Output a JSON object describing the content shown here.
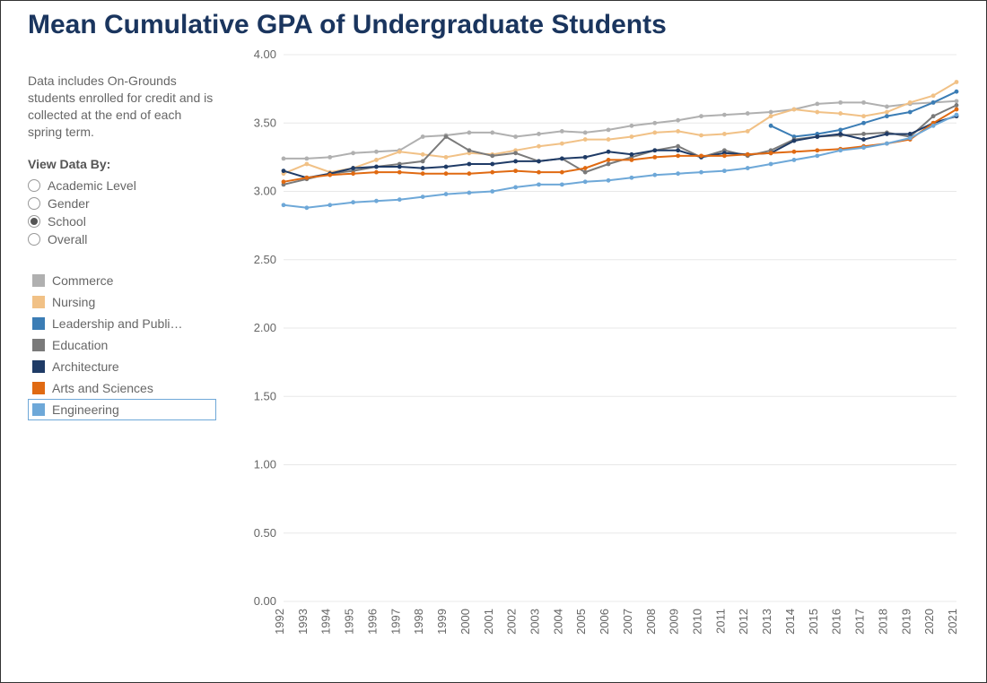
{
  "title": "Mean Cumulative GPA of Undergraduate Students",
  "caption": "Data includes On-Grounds students enrolled for credit and is collected at the end of each spring term.",
  "viewDataByLabel": "View Data By:",
  "radios": [
    {
      "label": "Academic Level",
      "selected": false
    },
    {
      "label": "Gender",
      "selected": false
    },
    {
      "label": "School",
      "selected": true
    },
    {
      "label": "Overall",
      "selected": false
    }
  ],
  "chart": {
    "type": "line",
    "background_color": "#ffffff",
    "grid_color": "#e8e8e8",
    "axis_text_color": "#666666",
    "axis_fontsize": 13,
    "title_color": "#1a355e",
    "title_fontsize": 30,
    "line_width": 2,
    "marker_radius": 2.4,
    "ylim": [
      0,
      4
    ],
    "ytick_step": 0.5,
    "yticks": [
      "0.00",
      "0.50",
      "1.00",
      "1.50",
      "2.00",
      "2.50",
      "3.00",
      "3.50",
      "4.00"
    ],
    "x_categories": [
      "1992",
      "1993",
      "1994",
      "1995",
      "1996",
      "1997",
      "1998",
      "1999",
      "2000",
      "2001",
      "2002",
      "2003",
      "2004",
      "2005",
      "2006",
      "2007",
      "2008",
      "2009",
      "2010",
      "2011",
      "2012",
      "2013",
      "2014",
      "2015",
      "2016",
      "2017",
      "2018",
      "2019",
      "2020",
      "2021"
    ],
    "legend_selected_index": 6,
    "series": [
      {
        "name": "Commerce",
        "color": "#b0b0b0",
        "values": [
          3.24,
          3.24,
          3.25,
          3.28,
          3.29,
          3.3,
          3.4,
          3.41,
          3.43,
          3.43,
          3.4,
          3.42,
          3.44,
          3.43,
          3.45,
          3.48,
          3.5,
          3.52,
          3.55,
          3.56,
          3.57,
          3.58,
          3.6,
          3.64,
          3.65,
          3.65,
          3.62,
          3.64,
          3.65,
          3.66
        ]
      },
      {
        "name": "Nursing",
        "color": "#f1c186",
        "values": [
          3.13,
          3.2,
          3.14,
          3.17,
          3.23,
          3.29,
          3.27,
          3.25,
          3.28,
          3.27,
          3.3,
          3.33,
          3.35,
          3.38,
          3.38,
          3.4,
          3.43,
          3.44,
          3.41,
          3.42,
          3.44,
          3.55,
          3.6,
          3.58,
          3.57,
          3.55,
          3.58,
          3.65,
          3.7,
          3.8
        ]
      },
      {
        "name": "Leadership and Publi…",
        "color": "#3b7db5",
        "values": [
          null,
          null,
          null,
          null,
          null,
          null,
          null,
          null,
          null,
          null,
          null,
          null,
          null,
          null,
          null,
          null,
          null,
          null,
          null,
          null,
          null,
          3.48,
          3.4,
          3.42,
          3.45,
          3.5,
          3.55,
          3.58,
          3.65,
          3.73
        ]
      },
      {
        "name": "Education",
        "color": "#7a7a7a",
        "values": [
          3.05,
          3.09,
          3.13,
          3.15,
          3.18,
          3.2,
          3.22,
          3.4,
          3.3,
          3.26,
          3.28,
          3.22,
          3.24,
          3.14,
          3.2,
          3.25,
          3.3,
          3.33,
          3.25,
          3.3,
          3.26,
          3.3,
          3.38,
          3.4,
          3.41,
          3.42,
          3.43,
          3.4,
          3.55,
          3.63
        ]
      },
      {
        "name": "Architecture",
        "color": "#1f3b66",
        "values": [
          3.15,
          3.1,
          3.13,
          3.17,
          3.18,
          3.18,
          3.17,
          3.18,
          3.2,
          3.2,
          3.22,
          3.22,
          3.24,
          3.25,
          3.29,
          3.27,
          3.3,
          3.3,
          3.25,
          3.28,
          3.27,
          3.28,
          3.37,
          3.4,
          3.42,
          3.38,
          3.42,
          3.42,
          3.5,
          3.55
        ]
      },
      {
        "name": "Arts and Sciences",
        "color": "#e06a12",
        "values": [
          3.07,
          3.1,
          3.12,
          3.13,
          3.14,
          3.14,
          3.13,
          3.13,
          3.13,
          3.14,
          3.15,
          3.14,
          3.14,
          3.17,
          3.23,
          3.23,
          3.25,
          3.26,
          3.26,
          3.26,
          3.27,
          3.28,
          3.29,
          3.3,
          3.31,
          3.33,
          3.35,
          3.38,
          3.5,
          3.6
        ]
      },
      {
        "name": "Engineering",
        "color": "#6ea8d8",
        "values": [
          2.9,
          2.88,
          2.9,
          2.92,
          2.93,
          2.94,
          2.96,
          2.98,
          2.99,
          3.0,
          3.03,
          3.05,
          3.05,
          3.07,
          3.08,
          3.1,
          3.12,
          3.13,
          3.14,
          3.15,
          3.17,
          3.2,
          3.23,
          3.26,
          3.3,
          3.32,
          3.35,
          3.39,
          3.48,
          3.56
        ]
      }
    ]
  }
}
